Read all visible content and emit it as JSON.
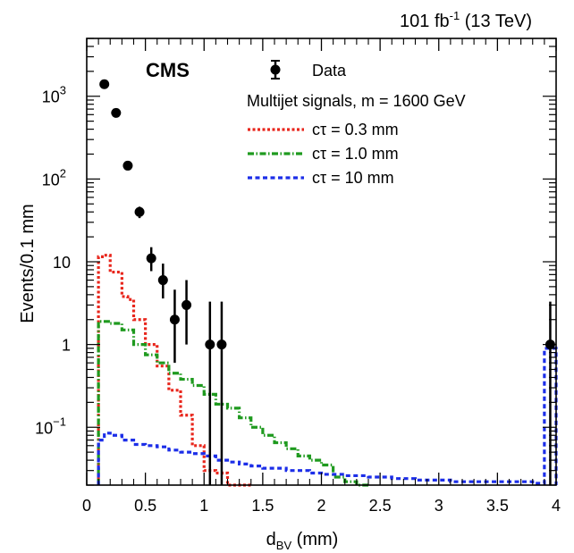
{
  "header": {
    "lumi_value": "101 fb",
    "lumi_exp": "-1",
    "lumi_energy": " (13 TeV)",
    "experiment": "CMS"
  },
  "chart_data": {
    "type": "histogram",
    "xlabel_main": "d",
    "xlabel_sub": "BV",
    "xlabel_unit": " (mm)",
    "ylabel": "Events/0.1 mm",
    "xlim": [
      0,
      4
    ],
    "ylim": [
      0.02,
      5000
    ],
    "yscale": "log",
    "xticks": [
      0,
      0.5,
      1,
      1.5,
      2,
      2.5,
      3,
      3.5,
      4
    ],
    "xtick_labels": [
      "0",
      "0.5",
      "1",
      "1.5",
      "2",
      "2.5",
      "3",
      "3.5",
      "4"
    ],
    "yticks": [
      {
        "value": 0.1,
        "base": "10",
        "exp": "−1"
      },
      {
        "value": 1,
        "base": "1",
        "exp": ""
      },
      {
        "value": 10,
        "base": "10",
        "exp": ""
      },
      {
        "value": 100,
        "base": "10",
        "exp": "2"
      },
      {
        "value": 1000,
        "base": "10",
        "exp": "3"
      }
    ],
    "legend_position": "top-right",
    "legend_title": "Multijet signals, m = 1600 GeV",
    "data": {
      "name": "Data",
      "color": "#000000",
      "points": [
        {
          "x": 0.15,
          "y": 1400,
          "lo": 1363,
          "hi": 1437
        },
        {
          "x": 0.25,
          "y": 630,
          "lo": 605,
          "hi": 655
        },
        {
          "x": 0.35,
          "y": 145,
          "lo": 133,
          "hi": 157
        },
        {
          "x": 0.45,
          "y": 40,
          "lo": 33.7,
          "hi": 46.3
        },
        {
          "x": 0.55,
          "y": 11,
          "lo": 7.7,
          "hi": 15
        },
        {
          "x": 0.65,
          "y": 6,
          "lo": 3.6,
          "hi": 9.5
        },
        {
          "x": 0.75,
          "y": 2,
          "lo": 0.6,
          "hi": 4.6
        },
        {
          "x": 0.85,
          "y": 3,
          "lo": 1.0,
          "hi": 6.0
        },
        {
          "x": 1.05,
          "y": 1,
          "lo": 0.02,
          "hi": 3.3
        },
        {
          "x": 1.15,
          "y": 1,
          "lo": 0.02,
          "hi": 3.3
        },
        {
          "x": 3.95,
          "y": 1,
          "lo": 0.02,
          "hi": 3.3
        }
      ]
    },
    "series": [
      {
        "name": "cτ = 0.3 mm",
        "color": "#e8261c",
        "dash": "3,2.5",
        "bin_edges": [
          0.1,
          0.15,
          0.2,
          0.3,
          0.35,
          0.4,
          0.5,
          0.6,
          0.7,
          0.8,
          0.9,
          1.0,
          1.1,
          1.2,
          1.3,
          1.4
        ],
        "values": [
          11.5,
          12,
          7.5,
          3.8,
          3.5,
          2.0,
          1.0,
          0.55,
          0.28,
          0.14,
          0.06,
          0.03,
          0.028,
          0.02,
          0.02
        ]
      },
      {
        "name": "cτ = 1.0 mm",
        "color": "#1f9a1f",
        "dash": "7,2.5,1.5,2.5",
        "bin_edges": [
          0.1,
          0.2,
          0.3,
          0.4,
          0.5,
          0.6,
          0.7,
          0.8,
          0.9,
          1.0,
          1.1,
          1.2,
          1.3,
          1.4,
          1.5,
          1.6,
          1.7,
          1.8,
          1.9,
          2.0,
          2.1,
          2.2,
          2.3,
          2.4
        ],
        "values": [
          1.9,
          1.8,
          1.5,
          1.0,
          0.75,
          0.6,
          0.45,
          0.38,
          0.32,
          0.25,
          0.19,
          0.17,
          0.13,
          0.1,
          0.08,
          0.065,
          0.055,
          0.045,
          0.04,
          0.035,
          0.025,
          0.022,
          0.02
        ]
      },
      {
        "name": "cτ = 10 mm",
        "color": "#1c2ee8",
        "dash": "5,3.5",
        "bin_edges": [
          0.1,
          0.15,
          0.2,
          0.3,
          0.4,
          0.5,
          0.6,
          0.7,
          0.8,
          0.9,
          1.0,
          1.1,
          1.2,
          1.3,
          1.4,
          1.5,
          1.6,
          1.7,
          1.8,
          1.9,
          2.0,
          2.1,
          2.2,
          2.3,
          2.4,
          2.5,
          2.6,
          2.7,
          2.8,
          2.9,
          3.0,
          3.1,
          3.2,
          3.3,
          3.4,
          3.5,
          3.6,
          3.7,
          3.8,
          3.9,
          4.0
        ],
        "values": [
          0.07,
          0.085,
          0.08,
          0.07,
          0.062,
          0.06,
          0.058,
          0.053,
          0.05,
          0.048,
          0.045,
          0.04,
          0.038,
          0.036,
          0.034,
          0.032,
          0.032,
          0.03,
          0.03,
          0.028,
          0.027,
          0.027,
          0.026,
          0.026,
          0.025,
          0.025,
          0.024,
          0.024,
          0.023,
          0.023,
          0.023,
          0.022,
          0.022,
          0.022,
          0.022,
          0.022,
          0.022,
          0.022,
          0.021,
          0.9
        ]
      }
    ]
  }
}
